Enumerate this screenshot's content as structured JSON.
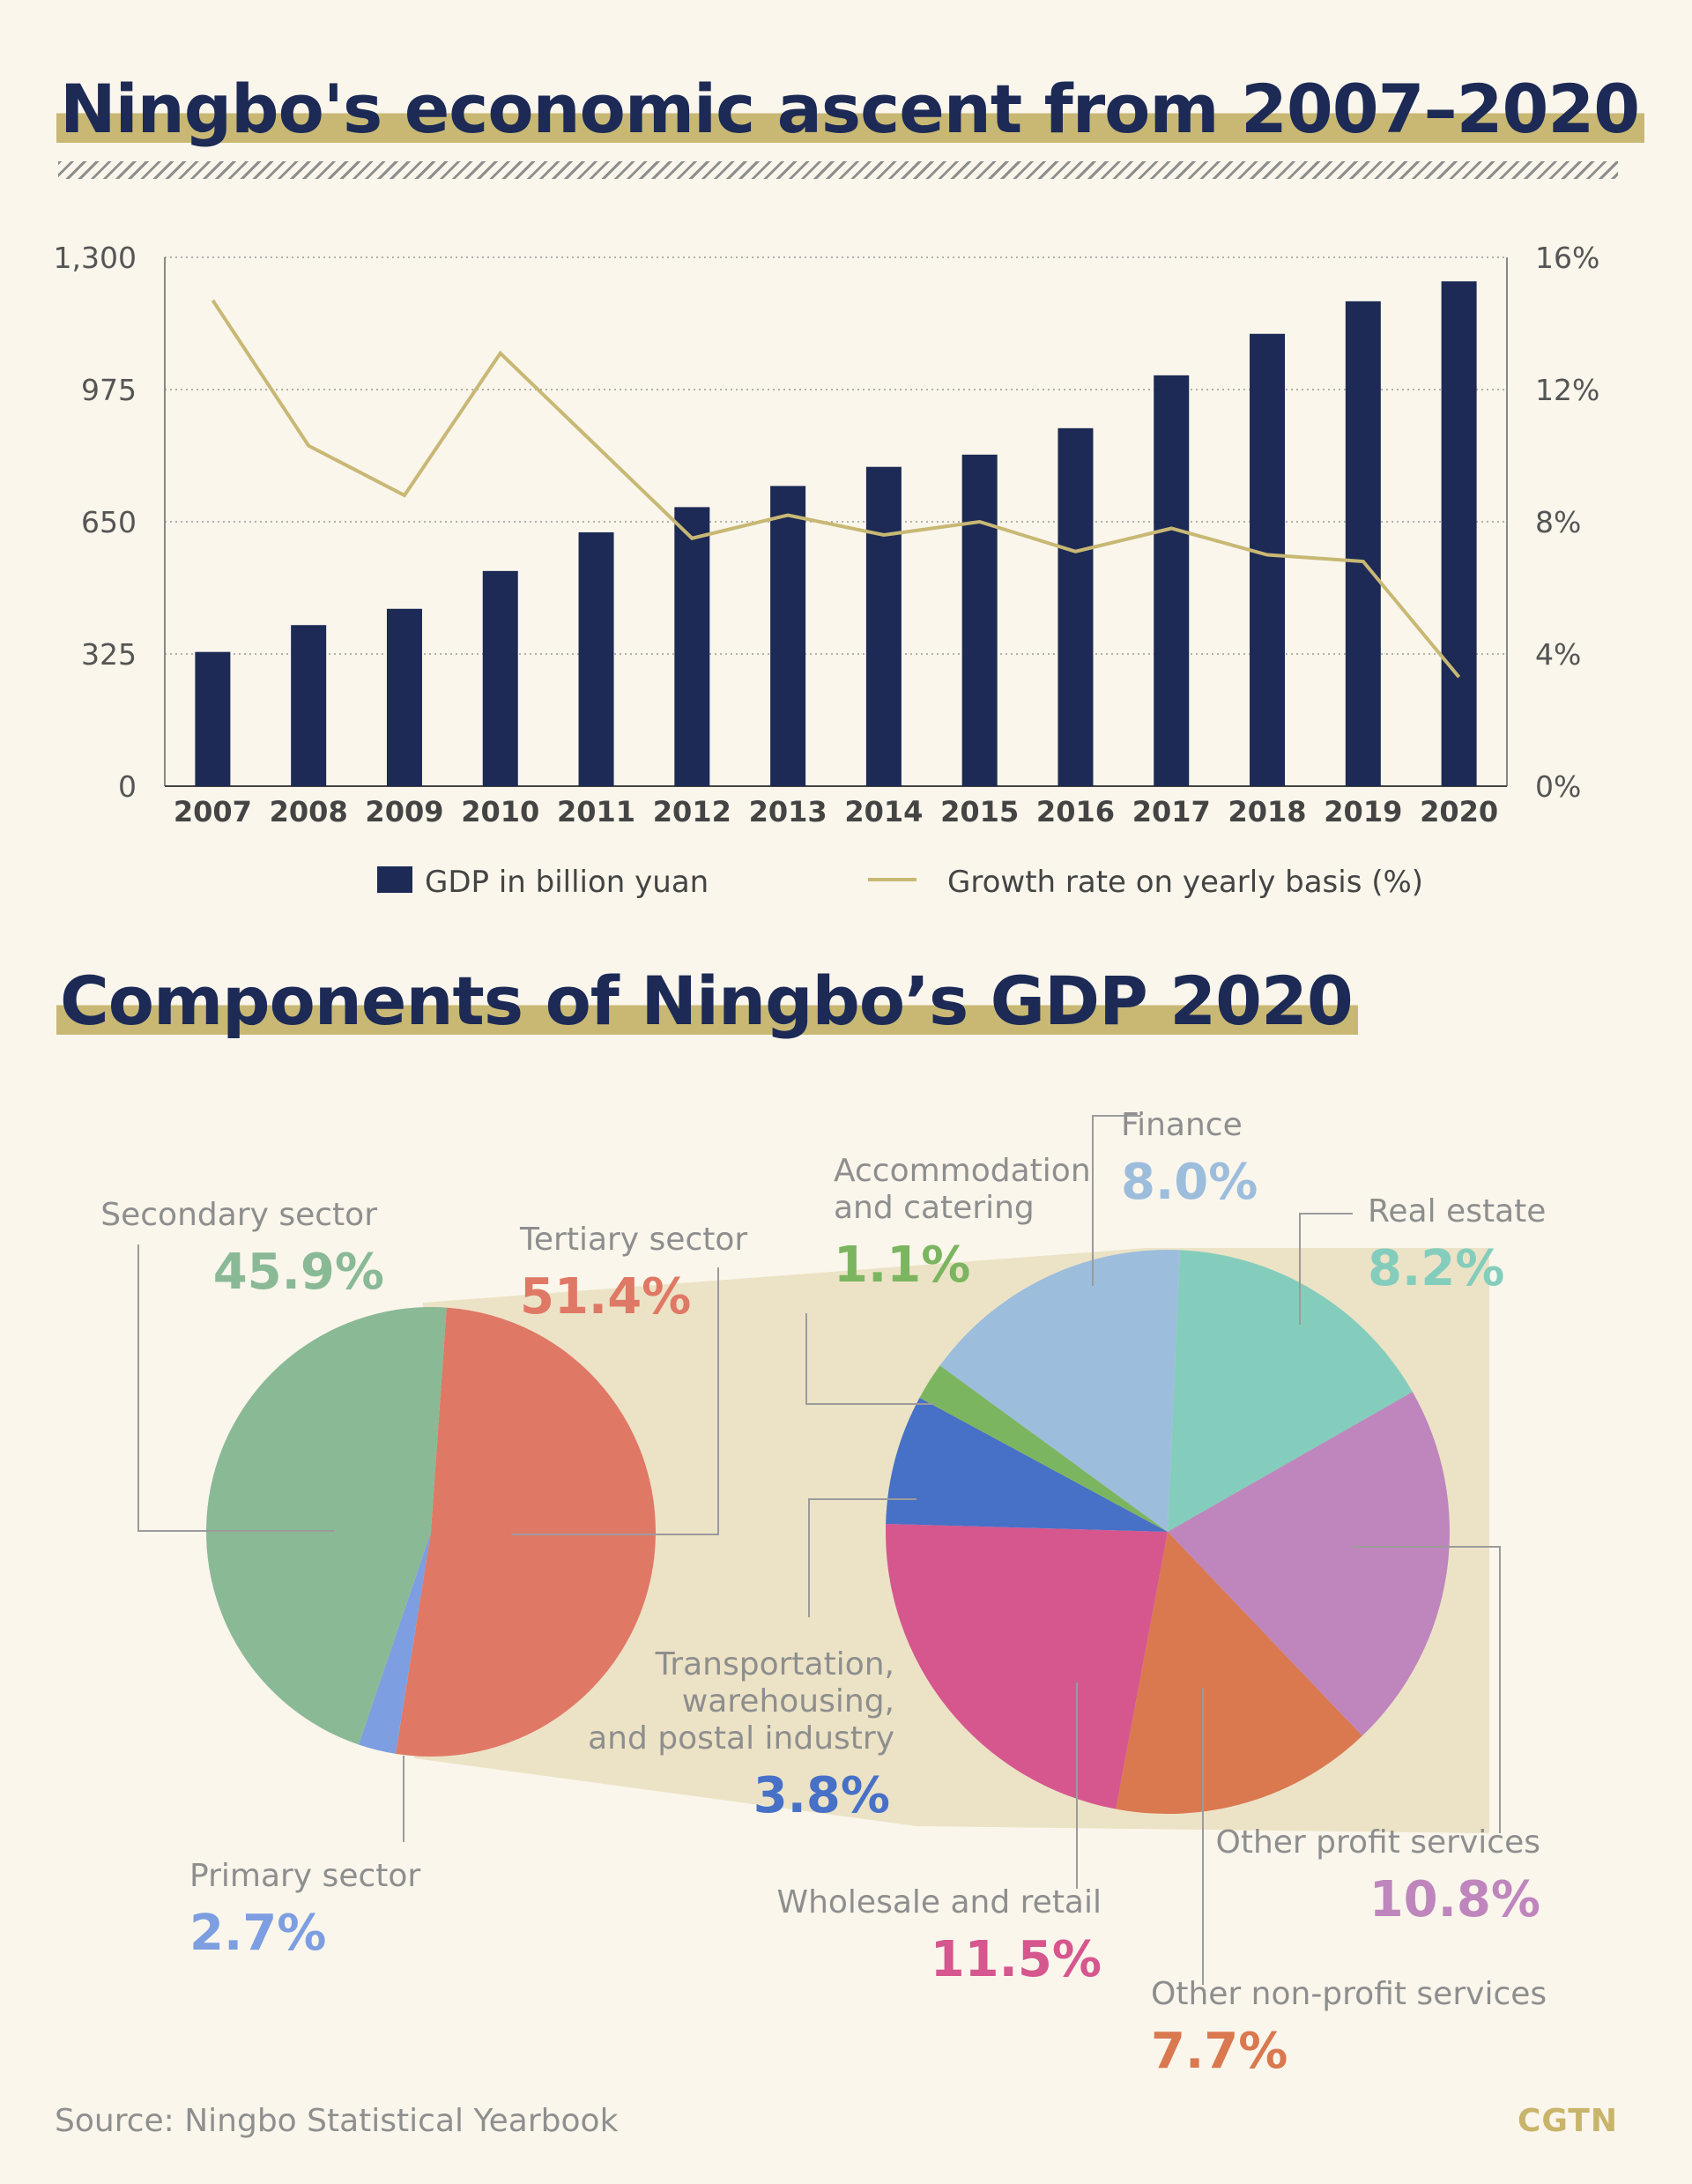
{
  "title": "Ningbo's economic ascent from 2007–2020",
  "title2": "Components of Ningbo’s GDP 2020",
  "source": "Source: Ningbo Statistical Yearbook",
  "brand": "CGTN",
  "colors": {
    "navy": "#1c2a55",
    "gold": "#c8b874",
    "fan": "#ece3c6",
    "secondary": "#8ab996",
    "tertiary": "#e07866",
    "primary": "#7d9ee0",
    "finance": "#9dbddc",
    "real_estate": "#84cdbd",
    "other_profit": "#be86bd",
    "other_nonprofit": "#da7850",
    "wholesale": "#d6568e",
    "transport": "#4770c7",
    "accommodation": "#7cb560"
  },
  "chart_data": [
    {
      "type": "bar",
      "categories": [
        "2007",
        "2008",
        "2009",
        "2010",
        "2011",
        "2012",
        "2013",
        "2014",
        "2015",
        "2016",
        "2017",
        "2018",
        "2019",
        "2020"
      ],
      "series": [
        {
          "name": "GDP in billion yuan",
          "type": "bar",
          "axis": "left",
          "values": [
            330,
            396,
            436,
            529,
            624,
            686,
            738,
            785,
            815,
            880,
            1010,
            1112,
            1192,
            1241
          ]
        },
        {
          "name": "Growth rate on yearly basis (%)",
          "type": "line",
          "axis": "right",
          "values": [
            14.7,
            10.3,
            8.8,
            13.1,
            10.3,
            7.5,
            8.2,
            7.6,
            8.0,
            7.1,
            7.8,
            7.0,
            6.8,
            3.3
          ]
        }
      ],
      "y_left": {
        "ticks": [
          "0",
          "325",
          "650",
          "975",
          "1,300"
        ],
        "ylim": [
          0,
          1300
        ]
      },
      "y_right": {
        "ticks": [
          "0%",
          "4%",
          "8%",
          "12%",
          "16%"
        ],
        "ylim": [
          0,
          16
        ]
      },
      "grid": true,
      "legend": "bottom"
    },
    {
      "type": "pie",
      "slices": [
        {
          "label": "Tertiary sector",
          "value": 51.4,
          "text": "51.4%"
        },
        {
          "label": "Primary sector",
          "value": 2.7,
          "text": "2.7%"
        },
        {
          "label": "Secondary sector",
          "value": 45.9,
          "text": "45.9%"
        }
      ]
    },
    {
      "type": "pie",
      "slices": [
        {
          "label": "Real estate",
          "value": 8.2,
          "text": "8.2%"
        },
        {
          "label": "Other profit services",
          "value": 10.8,
          "text": "10.8%"
        },
        {
          "label": "Other non-profit services",
          "value": 7.7,
          "text": "7.7%"
        },
        {
          "label": "Wholesale and retail",
          "value": 11.5,
          "text": "11.5%"
        },
        {
          "label": "Transportation, warehousing, and postal industry",
          "value": 3.8,
          "text": "3.8%"
        },
        {
          "label": "Accommodation and catering",
          "value": 1.1,
          "text": "1.1%"
        },
        {
          "label": "Finance",
          "value": 8.0,
          "text": "8.0%"
        }
      ]
    }
  ]
}
